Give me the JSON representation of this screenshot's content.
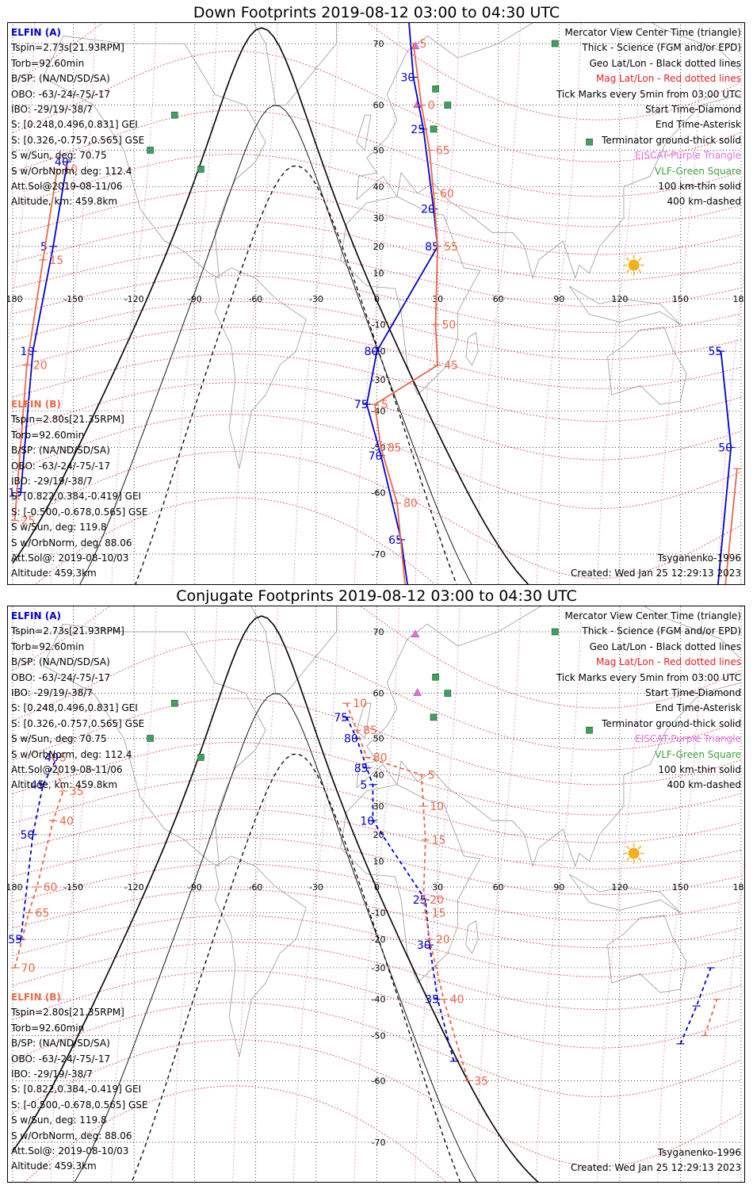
{
  "panels": [
    {
      "title": "Down Footprints 2019-08-12 03:00 to 04:30 UTC",
      "sat_a": {
        "name": "ELFIN (A)",
        "color": "#0000cc",
        "lines": [
          "Tspin=2.73s[21.93RPM]",
          "Torb=92.60min",
          "B/SP: (NA/ND/SD/SA)",
          "OBO: -63/-24/-75/-17",
          "IBO: -29/19/-38/7",
          "S: [0.248,0.496,0.831] GEI",
          "S: [0.326,-0.757,0.565] GSE",
          "S w/Sun, deg: 70.75",
          "S w/OrbNorm, deg: 112.4",
          "Att.Sol@2019-08-11/06",
          "Altitude, km: 459.8km"
        ]
      },
      "sat_b": {
        "name": "ELFIN (B)",
        "color": "#e8694a",
        "lines": [
          "Tspin=2.80s[21.35RPM]",
          "Torb=92.60min",
          "B/SP: (NA/ND/SD/SA)",
          "OBO: -63/-24/-75/-17",
          "IBO: -29/19/-38/7",
          "S: [0.822,0.384,-0.419] GEI",
          "S: [-0.500,-0.678,0.565] GSE",
          "S w/Sun, deg: 119.8",
          "S w/OrbNorm, deg: 88.06",
          "Att.Sol@: 2019-08-10/03",
          "Altitude: 459.3km"
        ]
      },
      "legend": [
        {
          "text": "Mercator View Center Time (triangle)",
          "color": "#000000"
        },
        {
          "text": "Thick - Science (FGM and/or EPD)",
          "color": "#000000"
        },
        {
          "text": "Geo Lat/Lon - Black dotted lines",
          "color": "#000000"
        },
        {
          "text": "Mag Lat/Lon - Red dotted lines",
          "color": "#e02020"
        },
        {
          "text": "Tick Marks every 5min from 03:00 UTC",
          "color": "#000000"
        },
        {
          "text": "Start Time-Diamond",
          "color": "#000000"
        },
        {
          "text": "End Time-Asterisk",
          "color": "#000000"
        },
        {
          "text": "Terminator ground-thick solid",
          "color": "#000000"
        },
        {
          "text": "EISCAT-Purple Triangle",
          "color": "#e070e0"
        },
        {
          "text": "VLF-Green Square",
          "color": "#40a040"
        },
        {
          "text": "100 km-thin solid",
          "color": "#000000"
        },
        {
          "text": "400 km-dashed",
          "color": "#000000"
        }
      ],
      "model": "Tsyganenko-1996",
      "created": "Created: Wed Jan 25 12:29:13 2023"
    },
    {
      "title": "Conjugate Footprints 2019-08-12 03:00 to 04:30 UTC",
      "sat_a": {
        "name": "ELFIN (A)",
        "color": "#0000cc",
        "lines": [
          "Tspin=2.73s[21.93RPM]",
          "Torb=92.60min",
          "B/SP: (NA/ND/SD/SA)",
          "OBO: -63/-24/-75/-17",
          "IBO: -29/19/-38/7",
          "S: [0.248,0.496,0.831] GEI",
          "S: [0.326,-0.757,0.565] GSE",
          "S w/Sun, deg: 70.75",
          "S w/OrbNorm, deg: 112.4",
          "Att.Sol@2019-08-11/06",
          "Altitude, km: 459.8km"
        ]
      },
      "sat_b": {
        "name": "ELFIN (B)",
        "color": "#e8694a",
        "lines": [
          "Tspin=2.80s[21.35RPM]",
          "Torb=92.60min",
          "B/SP: (NA/ND/SD/SA)",
          "OBO: -63/-24/-75/-17",
          "IBO: -29/19/-38/7",
          "S: [0.822,0.384,-0.419] GEI",
          "S: [-0.500,-0.678,0.565] GSE",
          "S w/Sun, deg: 119.8",
          "S w/OrbNorm, deg: 88.06",
          "Att.Sol@: 2019-08-10/03",
          "Altitude: 459.3km"
        ]
      },
      "legend": [
        {
          "text": "Mercator View Center Time (triangle)",
          "color": "#000000"
        },
        {
          "text": "Thick - Science (FGM and/or EPD)",
          "color": "#000000"
        },
        {
          "text": "Geo Lat/Lon - Black dotted lines",
          "color": "#000000"
        },
        {
          "text": "Mag Lat/Lon - Red dotted lines",
          "color": "#e02020"
        },
        {
          "text": "Tick Marks every 5min from 03:00 UTC",
          "color": "#000000"
        },
        {
          "text": "Start Time-Diamond",
          "color": "#000000"
        },
        {
          "text": "End Time-Asterisk",
          "color": "#000000"
        },
        {
          "text": "Terminator ground-thick solid",
          "color": "#000000"
        },
        {
          "text": "EISCAT-Purple Triangle",
          "color": "#e070e0"
        },
        {
          "text": "VLF-Green Square",
          "color": "#40a040"
        },
        {
          "text": "100 km-thin solid",
          "color": "#000000"
        },
        {
          "text": "400 km-dashed",
          "color": "#000000"
        }
      ],
      "model": "Tsyganenko-1996",
      "created": "Created: Wed Jan 25 12:29:13 2023"
    }
  ],
  "map": {
    "projection": "Mercator",
    "lon_ticks": [
      "-180",
      "-150",
      "-120",
      "-90",
      "-60",
      "-30",
      "0",
      "30",
      "60",
      "90",
      "120",
      "150",
      "180"
    ],
    "lat_ticks": [
      "70",
      "60",
      "50",
      "40",
      "30",
      "20",
      "10",
      "-10",
      "-20",
      "-30",
      "-40",
      "-50",
      "-60",
      "-70"
    ],
    "sun_symbol_color": "#f0b020",
    "geo_grid_color": "#000000",
    "mag_grid_color": "#e02020"
  },
  "tracks": [
    {
      "panel": 0,
      "sat": "A",
      "points": [
        [
          -176,
          -60
        ],
        [
          -170,
          -20
        ],
        [
          -160,
          20
        ],
        [
          -153,
          47
        ],
        [
          15,
          75
        ],
        [
          18,
          65
        ],
        [
          23,
          55
        ],
        [
          28,
          33
        ],
        [
          30,
          20
        ],
        [
          0,
          -20
        ],
        [
          -5,
          -38
        ],
        [
          2,
          -52
        ],
        [
          12,
          -68
        ],
        [
          16,
          -75
        ],
        [
          170,
          -20
        ],
        [
          175,
          -50
        ],
        [
          168,
          -75
        ]
      ],
      "labels": [
        "15",
        "10",
        "5",
        "40",
        "35",
        "30",
        "25",
        "20",
        "85",
        "80",
        "75",
        "70",
        "65",
        "60",
        "55",
        "50",
        "45"
      ]
    },
    {
      "panel": 0,
      "sat": "B",
      "points": [
        [
          -179,
          -65
        ],
        [
          -173,
          -25
        ],
        [
          -165,
          15
        ],
        [
          -158,
          45
        ],
        [
          18,
          70
        ],
        [
          22,
          60
        ],
        [
          26,
          50
        ],
        [
          28,
          38
        ],
        [
          30,
          20
        ],
        [
          29,
          -10
        ],
        [
          30,
          -25
        ],
        [
          -1,
          -38
        ],
        [
          2,
          -50
        ],
        [
          10,
          -62
        ],
        [
          15,
          -76
        ],
        [
          178,
          -55
        ],
        [
          170,
          -78
        ]
      ],
      "labels": [
        "25",
        "20",
        "15",
        "10",
        "5",
        "0",
        "65",
        "60",
        "55",
        "50",
        "45",
        "5",
        "85",
        "80"
      ]
    },
    {
      "panel": 1,
      "sat": "A",
      "points": [
        [
          -176,
          -20
        ],
        [
          -170,
          20
        ],
        [
          -165,
          37
        ],
        [
          -158,
          45
        ],
        [
          -15,
          55
        ],
        [
          -10,
          50
        ],
        [
          -5,
          42
        ],
        [
          -2,
          37
        ],
        [
          -2,
          25
        ],
        [
          24,
          -5
        ],
        [
          26,
          -22
        ],
        [
          30,
          -40
        ],
        [
          38,
          -56
        ],
        [
          150,
          -52
        ],
        [
          158,
          -42
        ],
        [
          165,
          -30
        ]
      ],
      "labels": [
        "55",
        "50",
        "45",
        "40",
        "75",
        "80",
        "85",
        "5",
        "10",
        "25",
        "30",
        "35"
      ]
    },
    {
      "panel": 1,
      "sat": "B",
      "points": [
        [
          -179,
          -30
        ],
        [
          -172,
          -10
        ],
        [
          -168,
          0
        ],
        [
          -160,
          25
        ],
        [
          -155,
          35
        ],
        [
          -160,
          45
        ],
        [
          -15,
          58
        ],
        [
          -10,
          52
        ],
        [
          -5,
          45
        ],
        [
          22,
          40
        ],
        [
          23,
          30
        ],
        [
          24,
          18
        ],
        [
          23,
          -5
        ],
        [
          24,
          -10
        ],
        [
          26,
          -20
        ],
        [
          33,
          -40
        ],
        [
          45,
          -60
        ],
        [
          162,
          -50
        ],
        [
          168,
          -40
        ]
      ],
      "labels": [
        "70",
        "65",
        "60",
        "40",
        "35",
        "5",
        "10",
        "85",
        "80",
        "5",
        "10",
        "15",
        "20",
        "15",
        "20",
        "40",
        "35"
      ]
    }
  ],
  "eiscat": [
    [
      19,
      69.6
    ],
    [
      20,
      60
    ],
    [
      16,
      78
    ]
  ],
  "vlf": [
    [
      -100,
      58
    ],
    [
      -112,
      50
    ],
    [
      -87,
      45
    ],
    [
      29,
      63
    ],
    [
      35,
      60
    ],
    [
      28,
      55
    ],
    [
      88,
      70
    ],
    [
      105,
      52
    ]
  ],
  "terminator_note": "thick solid"
}
